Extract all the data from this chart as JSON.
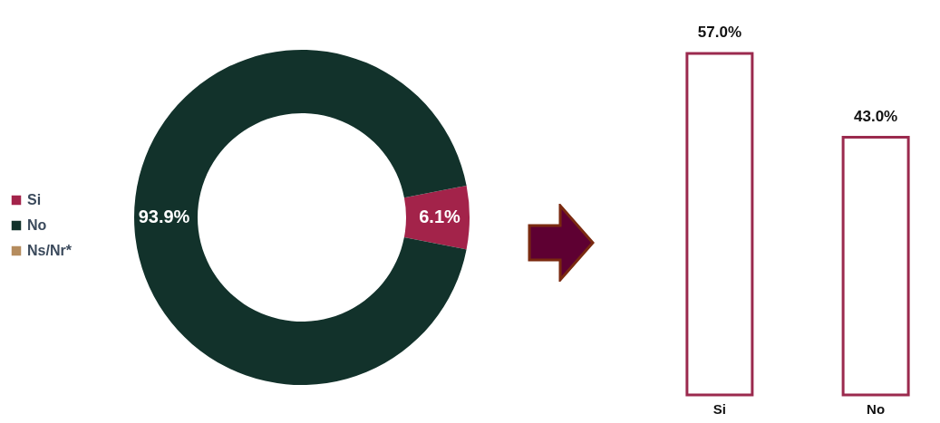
{
  "chart_data": [
    {
      "type": "donut",
      "categories": [
        "Si",
        "No",
        "Ns/Nr*"
      ],
      "values": [
        6.1,
        93.9,
        0
      ],
      "colors": [
        "#a3234a",
        "#12322b",
        "#b58c5e"
      ],
      "value_labels": [
        "6.1%",
        "93.9%",
        null
      ],
      "legend": "left"
    },
    {
      "type": "bar",
      "categories": [
        "Si",
        "No"
      ],
      "series": [
        {
          "color": "#9b2a4e",
          "values": [
            57.0,
            43.0
          ],
          "value_labels": [
            "57.0%",
            "43.0%"
          ]
        }
      ]
    }
  ]
}
